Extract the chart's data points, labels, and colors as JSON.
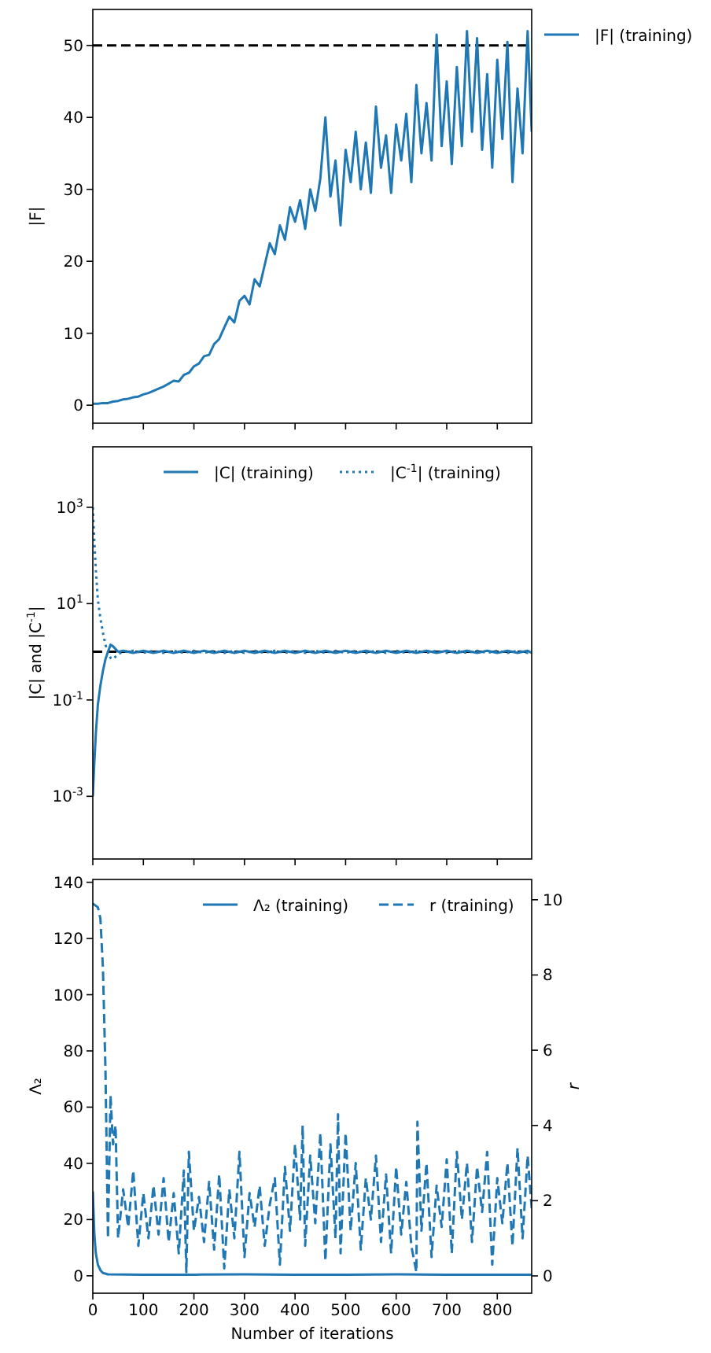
{
  "chart_data": [
    {
      "type": "line",
      "ylabel": "|F|",
      "xlim": [
        0,
        868
      ],
      "xticks": [
        0,
        100,
        200,
        300,
        400,
        500,
        600,
        700,
        800
      ],
      "ylim": [
        -2.5,
        55
      ],
      "yticks": [
        0,
        10,
        20,
        30,
        40,
        50
      ],
      "tick_labels": "y",
      "legend": "right",
      "ref_lines": [
        {
          "axis": "y",
          "value": 50,
          "color": "#000000",
          "line_style": "dashed"
        }
      ],
      "x": [
        0,
        10,
        20,
        30,
        40,
        50,
        60,
        70,
        80,
        90,
        100,
        110,
        120,
        130,
        140,
        150,
        160,
        170,
        180,
        190,
        200,
        210,
        220,
        230,
        240,
        250,
        260,
        270,
        280,
        290,
        300,
        310,
        320,
        330,
        340,
        350,
        360,
        370,
        380,
        390,
        400,
        410,
        420,
        430,
        440,
        450,
        460,
        470,
        480,
        490,
        500,
        510,
        520,
        530,
        540,
        550,
        560,
        570,
        580,
        590,
        600,
        610,
        620,
        630,
        640,
        650,
        660,
        670,
        680,
        690,
        700,
        710,
        720,
        730,
        740,
        750,
        760,
        770,
        780,
        790,
        800,
        810,
        820,
        830,
        840,
        850,
        860,
        868
      ],
      "series": [
        {
          "name": "|F| (training)",
          "color": "#1f77b4",
          "line_style": "solid",
          "values": [
            0.2,
            0.2,
            0.3,
            0.3,
            0.5,
            0.6,
            0.8,
            0.9,
            1.1,
            1.2,
            1.5,
            1.7,
            2.0,
            2.3,
            2.6,
            3.0,
            3.4,
            3.3,
            4.2,
            4.5,
            5.4,
            5.8,
            6.8,
            7.0,
            8.5,
            9.2,
            10.8,
            12.3,
            11.5,
            14.5,
            15.2,
            14.0,
            17.5,
            16.5,
            19.5,
            22.5,
            21.0,
            25.0,
            23.0,
            27.5,
            25.5,
            28.5,
            24.5,
            30.0,
            27.0,
            31.5,
            40.0,
            29.0,
            34.0,
            25.0,
            35.5,
            31.0,
            38.0,
            30.0,
            36.5,
            29.5,
            41.5,
            33.0,
            37.5,
            29.5,
            39.0,
            34.0,
            40.5,
            31.0,
            44.5,
            35.0,
            42.0,
            34.0,
            51.5,
            36.0,
            45.0,
            33.5,
            47.0,
            36.0,
            52.0,
            38.0,
            51.0,
            35.5,
            46.0,
            33.0,
            48.0,
            37.0,
            50.5,
            31.0,
            44.0,
            35.0,
            52.0,
            38.0
          ]
        }
      ]
    },
    {
      "type": "line",
      "ylabel": "|C| and |C$^{-1}$|",
      "log": "y",
      "xlim": [
        0,
        868
      ],
      "xticks": [
        0,
        100,
        200,
        300,
        400,
        500,
        600,
        700,
        800
      ],
      "ylim": [
        5e-05,
        18000
      ],
      "yticks": [
        {
          "value": 0.001,
          "label": "10$^{-3}$"
        },
        {
          "value": 0.1,
          "label": "10$^{-1}$"
        },
        {
          "value": 10,
          "label": "10$^{1}$"
        },
        {
          "value": 1000,
          "label": "10$^{3}$"
        }
      ],
      "tick_labels": "y",
      "legend": "top",
      "ref_lines": [
        {
          "axis": "y",
          "value": 1,
          "color": "#000000",
          "line_style": "dashed"
        }
      ],
      "x": [
        0,
        3,
        6,
        10,
        15,
        20,
        25,
        30,
        35,
        40,
        50,
        60,
        80,
        100,
        120,
        140,
        160,
        180,
        200,
        220,
        240,
        260,
        280,
        300,
        320,
        340,
        360,
        380,
        400,
        420,
        440,
        460,
        480,
        500,
        520,
        540,
        560,
        580,
        600,
        620,
        640,
        660,
        680,
        700,
        720,
        740,
        760,
        780,
        800,
        820,
        840,
        860,
        868
      ],
      "series": [
        {
          "name": "|C| (training)",
          "color": "#1f77b4",
          "line_style": "solid",
          "values": [
            0.001,
            0.005,
            0.02,
            0.08,
            0.2,
            0.4,
            0.7,
            1.0,
            1.4,
            1.3,
            1.0,
            1.05,
            0.95,
            1.05,
            0.95,
            1.05,
            0.95,
            1.05,
            0.95,
            1.05,
            0.95,
            1.05,
            0.95,
            1.05,
            0.95,
            1.05,
            0.95,
            1.05,
            0.95,
            1.05,
            0.95,
            1.05,
            0.95,
            1.05,
            0.95,
            1.05,
            0.95,
            1.05,
            0.95,
            1.05,
            0.95,
            1.05,
            0.95,
            1.05,
            0.95,
            1.05,
            0.95,
            1.05,
            0.95,
            1.05,
            0.95,
            1.05,
            0.95
          ]
        },
        {
          "name": "|C$^{-1}$| (training)",
          "color": "#1f77b4",
          "line_style": "dotted",
          "values": [
            1000,
            200,
            50,
            12,
            5,
            2.5,
            1.4,
            1.0,
            0.75,
            0.7,
            0.9,
            1.0,
            1.05,
            0.95,
            1.05,
            0.95,
            1.05,
            0.95,
            1.05,
            0.95,
            1.05,
            0.95,
            1.05,
            0.95,
            1.05,
            0.95,
            1.05,
            0.95,
            1.05,
            0.95,
            1.05,
            0.95,
            1.05,
            0.95,
            1.05,
            0.95,
            1.05,
            0.95,
            1.05,
            0.95,
            1.05,
            0.95,
            1.05,
            0.95,
            1.05,
            0.95,
            1.05,
            0.95,
            1.05,
            0.95,
            1.05,
            0.95,
            1.05
          ]
        }
      ]
    },
    {
      "type": "line",
      "xlabel": "Number of iterations",
      "ylabel": "Λ₂",
      "y2label": "r",
      "xlim": [
        0,
        868
      ],
      "xticks": [
        0,
        100,
        200,
        300,
        400,
        500,
        600,
        700,
        800
      ],
      "ylim": [
        -6.2,
        141
      ],
      "yticks": [
        0,
        20,
        40,
        60,
        80,
        100,
        120,
        140
      ],
      "y2lim": [
        -0.46,
        10.54
      ],
      "y2ticks": [
        0,
        2,
        4,
        6,
        8,
        10
      ],
      "legend": "top right",
      "series": [
        {
          "name": "Λ₂ (training)",
          "color": "#1f77b4",
          "line_style": "solid",
          "x": [
            0,
            3,
            6,
            10,
            15,
            20,
            30,
            100,
            200,
            300,
            400,
            500,
            600,
            700,
            800,
            868
          ],
          "values": [
            30,
            15,
            8,
            4,
            2,
            1,
            0.5,
            0.4,
            0.4,
            0.5,
            0.4,
            0.4,
            0.5,
            0.4,
            0.4,
            0.4
          ]
        },
        {
          "name": "r (training)",
          "color": "#1f77b4",
          "line_style": "dashed",
          "axis": "y2",
          "x": [
            0,
            10,
            15,
            20,
            25,
            30,
            35,
            40,
            45,
            50,
            60,
            70,
            80,
            90,
            100,
            110,
            120,
            130,
            140,
            150,
            160,
            170,
            180,
            185,
            190,
            200,
            210,
            220,
            230,
            240,
            250,
            260,
            270,
            280,
            290,
            300,
            310,
            320,
            330,
            340,
            350,
            360,
            370,
            380,
            390,
            400,
            410,
            415,
            420,
            430,
            440,
            450,
            460,
            470,
            480,
            485,
            490,
            500,
            510,
            520,
            530,
            540,
            550,
            560,
            570,
            580,
            590,
            600,
            610,
            620,
            630,
            640,
            642,
            650,
            660,
            670,
            680,
            690,
            700,
            710,
            720,
            730,
            740,
            750,
            760,
            770,
            780,
            790,
            800,
            810,
            820,
            830,
            840,
            850,
            860,
            868
          ],
          "values": [
            9.9,
            9.8,
            9.5,
            8.2,
            5.5,
            1.0,
            4.8,
            3.5,
            4.0,
            1.0,
            2.3,
            1.3,
            2.8,
            0.8,
            2.2,
            1.0,
            2.4,
            1.1,
            2.6,
            0.9,
            2.2,
            0.6,
            2.8,
            0.1,
            3.3,
            1.2,
            2.1,
            0.9,
            2.5,
            0.7,
            2.7,
            0.2,
            2.3,
            1.0,
            3.3,
            0.5,
            2.2,
            1.3,
            2.4,
            0.8,
            1.9,
            2.6,
            0.3,
            2.9,
            1.2,
            3.5,
            1.5,
            4.0,
            0.8,
            3.2,
            1.4,
            3.8,
            0.4,
            3.5,
            1.0,
            4.3,
            0.6,
            3.8,
            1.2,
            3.0,
            0.7,
            2.6,
            1.5,
            3.2,
            0.9,
            2.7,
            0.6,
            2.9,
            1.1,
            2.5,
            0.8,
            0.1,
            4.1,
            1.2,
            3.0,
            0.5,
            2.4,
            1.3,
            3.1,
            0.6,
            3.3,
            1.5,
            3.0,
            0.9,
            2.9,
            1.7,
            3.3,
            0.3,
            2.6,
            1.4,
            3.0,
            0.8,
            3.4,
            1.0,
            3.2,
            1.8
          ]
        }
      ]
    }
  ]
}
